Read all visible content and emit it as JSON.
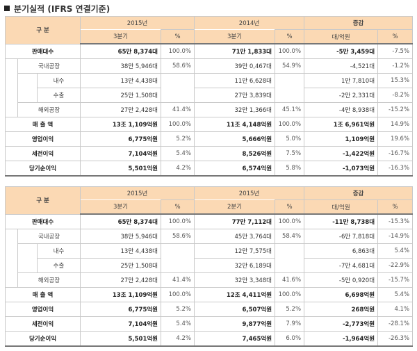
{
  "heading": "분기실적 (IFRS 연결기준)",
  "tables": [
    {
      "header": {
        "label": "구 분",
        "col1_year": "2015년",
        "col1_quarter": "3분기",
        "pct": "%",
        "col2_year": "2014년",
        "col2_quarter": "3분기",
        "change": "증감",
        "change_unit": "대/억원"
      },
      "rows": [
        {
          "label": "판매대수",
          "v1": "65만 8,374대",
          "p1": "100.0%",
          "v2": "71만 1,833대",
          "p2": "100.0%",
          "d": "-5만 3,459대",
          "dp": "-7.5%"
        },
        {
          "label": "국내공장",
          "v1": "38만 5,946대",
          "p1": "58.6%",
          "v2": "39만 0,467대",
          "p2": "54.9%",
          "d": "-4,521대",
          "dp": "-1.2%"
        },
        {
          "label": "내수",
          "v1": "13만 4,438대",
          "p1": "",
          "v2": "11만 6,628대",
          "p2": "",
          "d": "1만 7,810대",
          "dp": "15.3%"
        },
        {
          "label": "수출",
          "v1": "25만 1,508대",
          "p1": "",
          "v2": "27만 3,839대",
          "p2": "",
          "d": "-2만 2,331대",
          "dp": "-8.2%"
        },
        {
          "label": "해외공장",
          "v1": "27만 2,428대",
          "p1": "41.4%",
          "v2": "32만 1,366대",
          "p2": "45.1%",
          "d": "-4만 8,938대",
          "dp": "-15.2%"
        },
        {
          "label": "매 출 액",
          "v1": "13조 1,109억원",
          "p1": "100.0%",
          "v2": "11조 4,148억원",
          "p2": "100.0%",
          "d": "1조 6,961억원",
          "dp": "14.9%"
        },
        {
          "label": "영업이익",
          "v1": "6,775억원",
          "p1": "5.2%",
          "v2": "5,666억원",
          "p2": "5.0%",
          "d": "1,109억원",
          "dp": "19.6%"
        },
        {
          "label": "세전이익",
          "v1": "7,104억원",
          "p1": "5.4%",
          "v2": "8,526억원",
          "p2": "7.5%",
          "d": "-1,422억원",
          "dp": "-16.7%"
        },
        {
          "label": "당기순이익",
          "v1": "5,501억원",
          "p1": "4.2%",
          "v2": "6,574억원",
          "p2": "5.8%",
          "d": "-1,073억원",
          "dp": "-16.3%"
        }
      ]
    },
    {
      "header": {
        "label": "구 분",
        "col1_year": "2015년",
        "col1_quarter": "3분기",
        "pct": "%",
        "col2_year": "2015년",
        "col2_quarter": "2분기",
        "change": "증감",
        "change_unit": "대/억원"
      },
      "rows": [
        {
          "label": "판매대수",
          "v1": "65만 8,374대",
          "p1": "100.0%",
          "v2": "77만 7,112대",
          "p2": "100.0%",
          "d": "-11만 8,738대",
          "dp": "-15.3%"
        },
        {
          "label": "국내공장",
          "v1": "38만 5,946대",
          "p1": "58.6%",
          "v2": "45만 3,764대",
          "p2": "58.4%",
          "d": "-6만 7,818대",
          "dp": "-14.9%"
        },
        {
          "label": "내수",
          "v1": "13만 4,438대",
          "p1": "",
          "v2": "12만 7,575대",
          "p2": "",
          "d": "6,863대",
          "dp": "5.4%"
        },
        {
          "label": "수출",
          "v1": "25만 1,508대",
          "p1": "",
          "v2": "32만 6,189대",
          "p2": "",
          "d": "-7만 4,681대",
          "dp": "-22.9%"
        },
        {
          "label": "해외공장",
          "v1": "27만 2,428대",
          "p1": "41.4%",
          "v2": "32만 3,348대",
          "p2": "41.6%",
          "d": "-5만 0,920대",
          "dp": "-15.7%"
        },
        {
          "label": "매 출 액",
          "v1": "13조 1,109억원",
          "p1": "100.0%",
          "v2": "12조 4,411억원",
          "p2": "100.0%",
          "d": "6,698억원",
          "dp": "5.4%"
        },
        {
          "label": "영업이익",
          "v1": "6,775억원",
          "p1": "5.2%",
          "v2": "6,507억원",
          "p2": "5.2%",
          "d": "268억원",
          "dp": "4.1%"
        },
        {
          "label": "세전이익",
          "v1": "7,104억원",
          "p1": "5.4%",
          "v2": "9,877억원",
          "p2": "7.9%",
          "d": "-2,773억원",
          "dp": "-28.1%"
        },
        {
          "label": "당기순이익",
          "v1": "5,501억원",
          "p1": "4.2%",
          "v2": "7,465억원",
          "p2": "6.0%",
          "d": "-1,964억원",
          "dp": "-26.3%"
        }
      ]
    }
  ]
}
